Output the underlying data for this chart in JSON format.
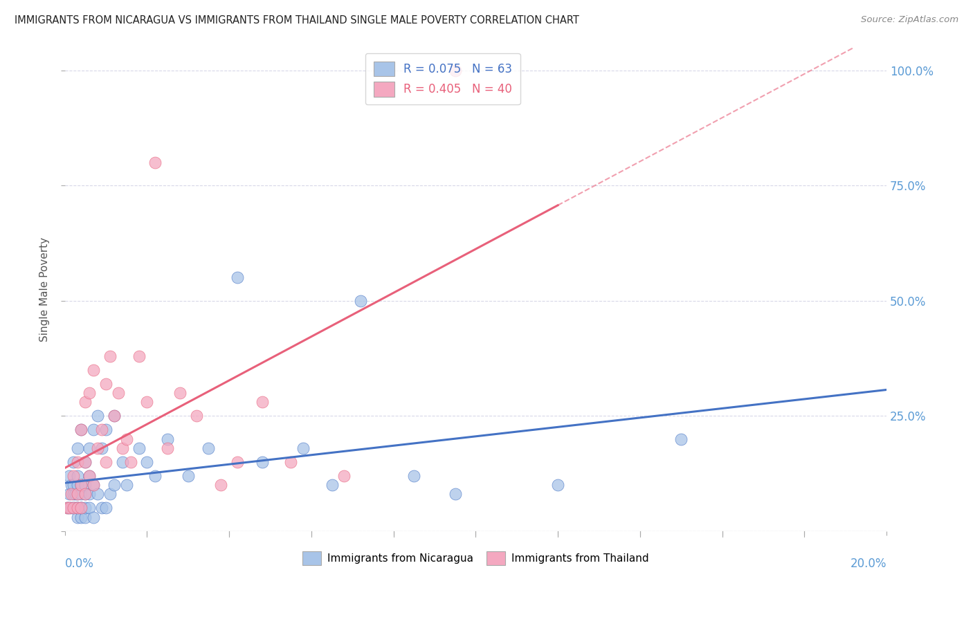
{
  "title": "IMMIGRANTS FROM NICARAGUA VS IMMIGRANTS FROM THAILAND SINGLE MALE POVERTY CORRELATION CHART",
  "source": "Source: ZipAtlas.com",
  "ylabel": "Single Male Poverty",
  "r_nicaragua": 0.075,
  "n_nicaragua": 63,
  "r_thailand": 0.405,
  "n_thailand": 40,
  "color_nicaragua": "#a8c4e8",
  "color_thailand": "#f4a8c0",
  "color_nicaragua_line": "#4472c4",
  "color_thailand_line": "#e8607a",
  "background": "#ffffff",
  "grid_color": "#d8d8e8",
  "xlim": [
    0.0,
    0.2
  ],
  "ylim": [
    0.0,
    1.05
  ],
  "nicaragua_x": [
    0.0005,
    0.001,
    0.001,
    0.001,
    0.0015,
    0.0015,
    0.002,
    0.002,
    0.002,
    0.002,
    0.0025,
    0.0025,
    0.003,
    0.003,
    0.003,
    0.003,
    0.003,
    0.003,
    0.003,
    0.004,
    0.004,
    0.004,
    0.004,
    0.004,
    0.004,
    0.005,
    0.005,
    0.005,
    0.005,
    0.005,
    0.006,
    0.006,
    0.006,
    0.006,
    0.007,
    0.007,
    0.007,
    0.008,
    0.008,
    0.009,
    0.009,
    0.01,
    0.01,
    0.011,
    0.012,
    0.012,
    0.014,
    0.015,
    0.018,
    0.02,
    0.022,
    0.025,
    0.03,
    0.035,
    0.042,
    0.048,
    0.058,
    0.065,
    0.072,
    0.085,
    0.095,
    0.12,
    0.15
  ],
  "nicaragua_y": [
    0.05,
    0.05,
    0.08,
    0.12,
    0.05,
    0.1,
    0.05,
    0.08,
    0.1,
    0.15,
    0.05,
    0.08,
    0.03,
    0.05,
    0.05,
    0.08,
    0.1,
    0.12,
    0.18,
    0.03,
    0.05,
    0.05,
    0.08,
    0.1,
    0.22,
    0.03,
    0.05,
    0.08,
    0.1,
    0.15,
    0.05,
    0.08,
    0.12,
    0.18,
    0.03,
    0.1,
    0.22,
    0.08,
    0.25,
    0.05,
    0.18,
    0.05,
    0.22,
    0.08,
    0.1,
    0.25,
    0.15,
    0.1,
    0.18,
    0.15,
    0.12,
    0.2,
    0.12,
    0.18,
    0.55,
    0.15,
    0.18,
    0.1,
    0.5,
    0.12,
    0.08,
    0.1,
    0.2
  ],
  "thailand_x": [
    0.0005,
    0.001,
    0.0015,
    0.002,
    0.002,
    0.003,
    0.003,
    0.003,
    0.004,
    0.004,
    0.004,
    0.005,
    0.005,
    0.005,
    0.006,
    0.006,
    0.007,
    0.007,
    0.008,
    0.009,
    0.01,
    0.01,
    0.011,
    0.012,
    0.013,
    0.014,
    0.015,
    0.016,
    0.018,
    0.02,
    0.022,
    0.025,
    0.028,
    0.032,
    0.038,
    0.042,
    0.048,
    0.055,
    0.068,
    0.095
  ],
  "thailand_y": [
    0.05,
    0.05,
    0.08,
    0.05,
    0.12,
    0.05,
    0.08,
    0.15,
    0.05,
    0.1,
    0.22,
    0.08,
    0.15,
    0.28,
    0.12,
    0.3,
    0.1,
    0.35,
    0.18,
    0.22,
    0.15,
    0.32,
    0.38,
    0.25,
    0.3,
    0.18,
    0.2,
    0.15,
    0.38,
    0.28,
    0.8,
    0.18,
    0.3,
    0.25,
    0.1,
    0.15,
    0.28,
    0.15,
    0.12,
    1.0
  ]
}
